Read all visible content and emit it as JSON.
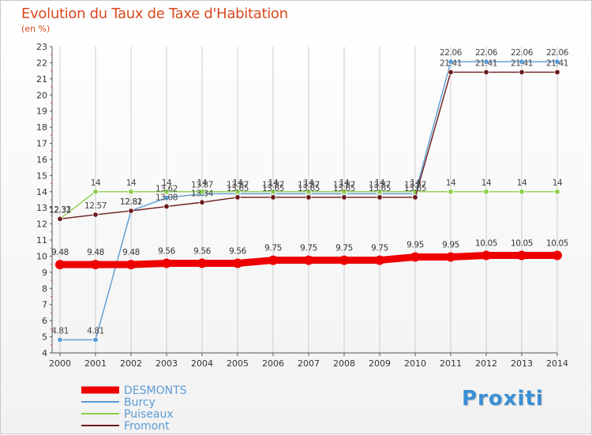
{
  "title": "Evolution du Taux de Taxe d'Habitation",
  "unit_label": "(en %)",
  "logo_text": "Proxiti",
  "colors": {
    "title": "#d94a1e",
    "axis": "#333333",
    "grid": "#cccccc"
  },
  "chart_data": {
    "type": "line",
    "title": "Evolution du Taux de Taxe d'Habitation",
    "ylabel": "(en %)",
    "xlabel": "",
    "x": [
      "2000",
      "2001",
      "2002",
      "2003",
      "2004",
      "2005",
      "2006",
      "2007",
      "2008",
      "2009",
      "2010",
      "2011",
      "2012",
      "2013",
      "2014"
    ],
    "yticks": [
      4,
      5,
      6,
      7,
      8,
      9,
      10,
      11,
      12,
      13,
      14,
      15,
      16,
      17,
      18,
      19,
      20,
      21,
      22,
      23
    ],
    "ylim": [
      4,
      23
    ],
    "grid": "vertical",
    "legend_position": "bottom-left",
    "series": [
      {
        "name": "DESMONTS",
        "color": "#ee0000",
        "highlight": true,
        "values": [
          9.48,
          9.48,
          9.48,
          9.56,
          9.56,
          9.56,
          9.75,
          9.75,
          9.75,
          9.75,
          9.95,
          9.95,
          10.05,
          10.05,
          10.05
        ],
        "labels": [
          "9.48",
          "9.48",
          "9.48",
          "9.56",
          "9.56",
          "9.56",
          "9.75",
          "9.75",
          "9.75",
          "9.75",
          "9.95",
          "9.95",
          "10.05",
          "10.05",
          "10.05"
        ]
      },
      {
        "name": "Burcy",
        "color": "#5b9bd5",
        "highlight": false,
        "values": [
          4.81,
          4.81,
          12.82,
          13.62,
          13.87,
          13.87,
          13.87,
          13.87,
          13.87,
          13.87,
          13.87,
          22.06,
          22.06,
          22.06,
          22.06
        ],
        "labels": [
          "4.81",
          "4.81",
          "12.82",
          "13.62",
          "13.87",
          "13.87",
          "13.87",
          "13.87",
          "13.87",
          "13.87",
          "13.87",
          "22.06",
          "22.06",
          "22.06",
          "22.06"
        ]
      },
      {
        "name": "Puiseaux",
        "color": "#8ccf4d",
        "highlight": false,
        "values": [
          12.32,
          14,
          14,
          14,
          14,
          14,
          14,
          14,
          14,
          14,
          14,
          14,
          14,
          14,
          14
        ],
        "labels": [
          "12.32",
          "14",
          "14",
          "14",
          "14",
          "14",
          "14",
          "14",
          "14",
          "14",
          "14",
          "14",
          "14",
          "14",
          "14"
        ]
      },
      {
        "name": "Fromont",
        "color": "#6b1a1a",
        "highlight": false,
        "values": [
          12.31,
          12.57,
          12.81,
          13.08,
          13.34,
          13.65,
          13.65,
          13.65,
          13.65,
          13.65,
          13.65,
          21.41,
          21.41,
          21.41,
          21.41
        ],
        "labels": [
          "12.31",
          "12.57",
          "12.81",
          "13.08",
          "13.34",
          "13.65",
          "13.65",
          "13.65",
          "13.65",
          "13.65",
          "13.65",
          "21.41",
          "21.41",
          "21.41",
          "21.41"
        ]
      }
    ]
  }
}
